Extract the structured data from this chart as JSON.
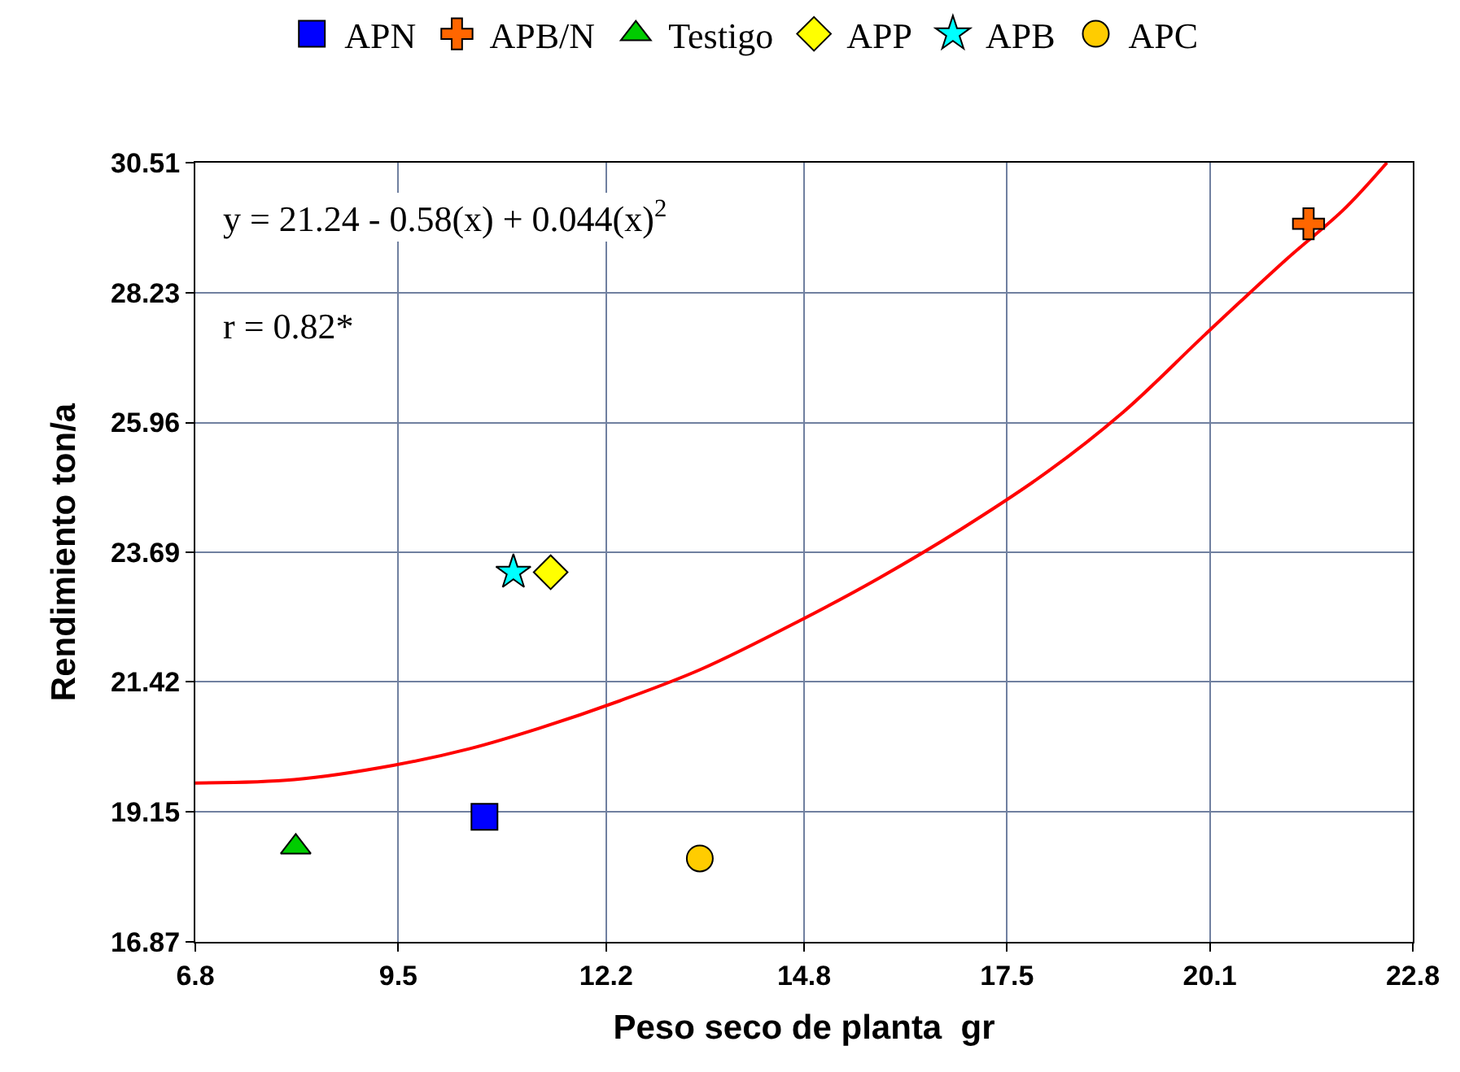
{
  "chart_data": {
    "type": "scatter",
    "xlabel": "Peso seco de planta  gr",
    "ylabel": "Rendimiento ton/a",
    "xlim": [
      6.8,
      22.8
    ],
    "xticks": [
      {
        "value": 6.8,
        "label": "6.8"
      },
      {
        "value": 9.467,
        "label": "9.5"
      },
      12.2,
      {
        "value": 14.8,
        "label": "14.8"
      },
      {
        "value": 17.467,
        "label": "17.5"
      },
      {
        "value": 20.133,
        "label": "20.1"
      },
      {
        "value": 22.8,
        "label": "22.8"
      }
    ],
    "ylim": [
      16.87,
      30.51
    ],
    "yticks": [
      16.87,
      19.15,
      21.42,
      {
        "value": 23.69,
        "label": "23.69"
      },
      25.96,
      28.23,
      30.51
    ],
    "grid": true,
    "legend": "top",
    "annotations": [
      "y = 21.24 - 0.58(x) + 0.044(x)$^{2}$",
      "r = 0.82*"
    ],
    "series": [
      {
        "type": "line",
        "color": "#ff0000",
        "line_style": "solid",
        "x": [
          6.8,
          8.1,
          9.4,
          10.4,
          11.32,
          12.4,
          13.46,
          14.74,
          15.8,
          16.87,
          18.0,
          19.0,
          20.07,
          21.14,
          21.9,
          22.46
        ],
        "values": [
          19.65,
          19.71,
          19.96,
          20.25,
          20.61,
          21.1,
          21.65,
          22.49,
          23.25,
          24.1,
          25.1,
          26.15,
          27.5,
          28.82,
          29.7,
          30.51
        ]
      },
      {
        "name": "APN",
        "color": "#0000ff",
        "marker": "square",
        "x": [
          10.6
        ],
        "values": [
          19.06
        ]
      },
      {
        "name": "APB/N",
        "color": "#ff6600",
        "marker": "cross",
        "x": [
          21.43
        ],
        "values": [
          29.44
        ]
      },
      {
        "name": "Testigo",
        "color": "#00cc00",
        "marker": "triangle",
        "x": [
          8.12
        ],
        "values": [
          18.53
        ]
      },
      {
        "name": "APP",
        "color": "#ffff00",
        "marker": "diamond",
        "x": [
          11.47
        ],
        "values": [
          23.34
        ]
      },
      {
        "name": "APB",
        "color": "#00ffff",
        "marker": "star",
        "x": [
          10.98
        ],
        "values": [
          23.34
        ]
      },
      {
        "name": "APC",
        "color": "#ffcc00",
        "marker": "circle",
        "x": [
          13.43
        ],
        "values": [
          18.33
        ]
      }
    ]
  }
}
